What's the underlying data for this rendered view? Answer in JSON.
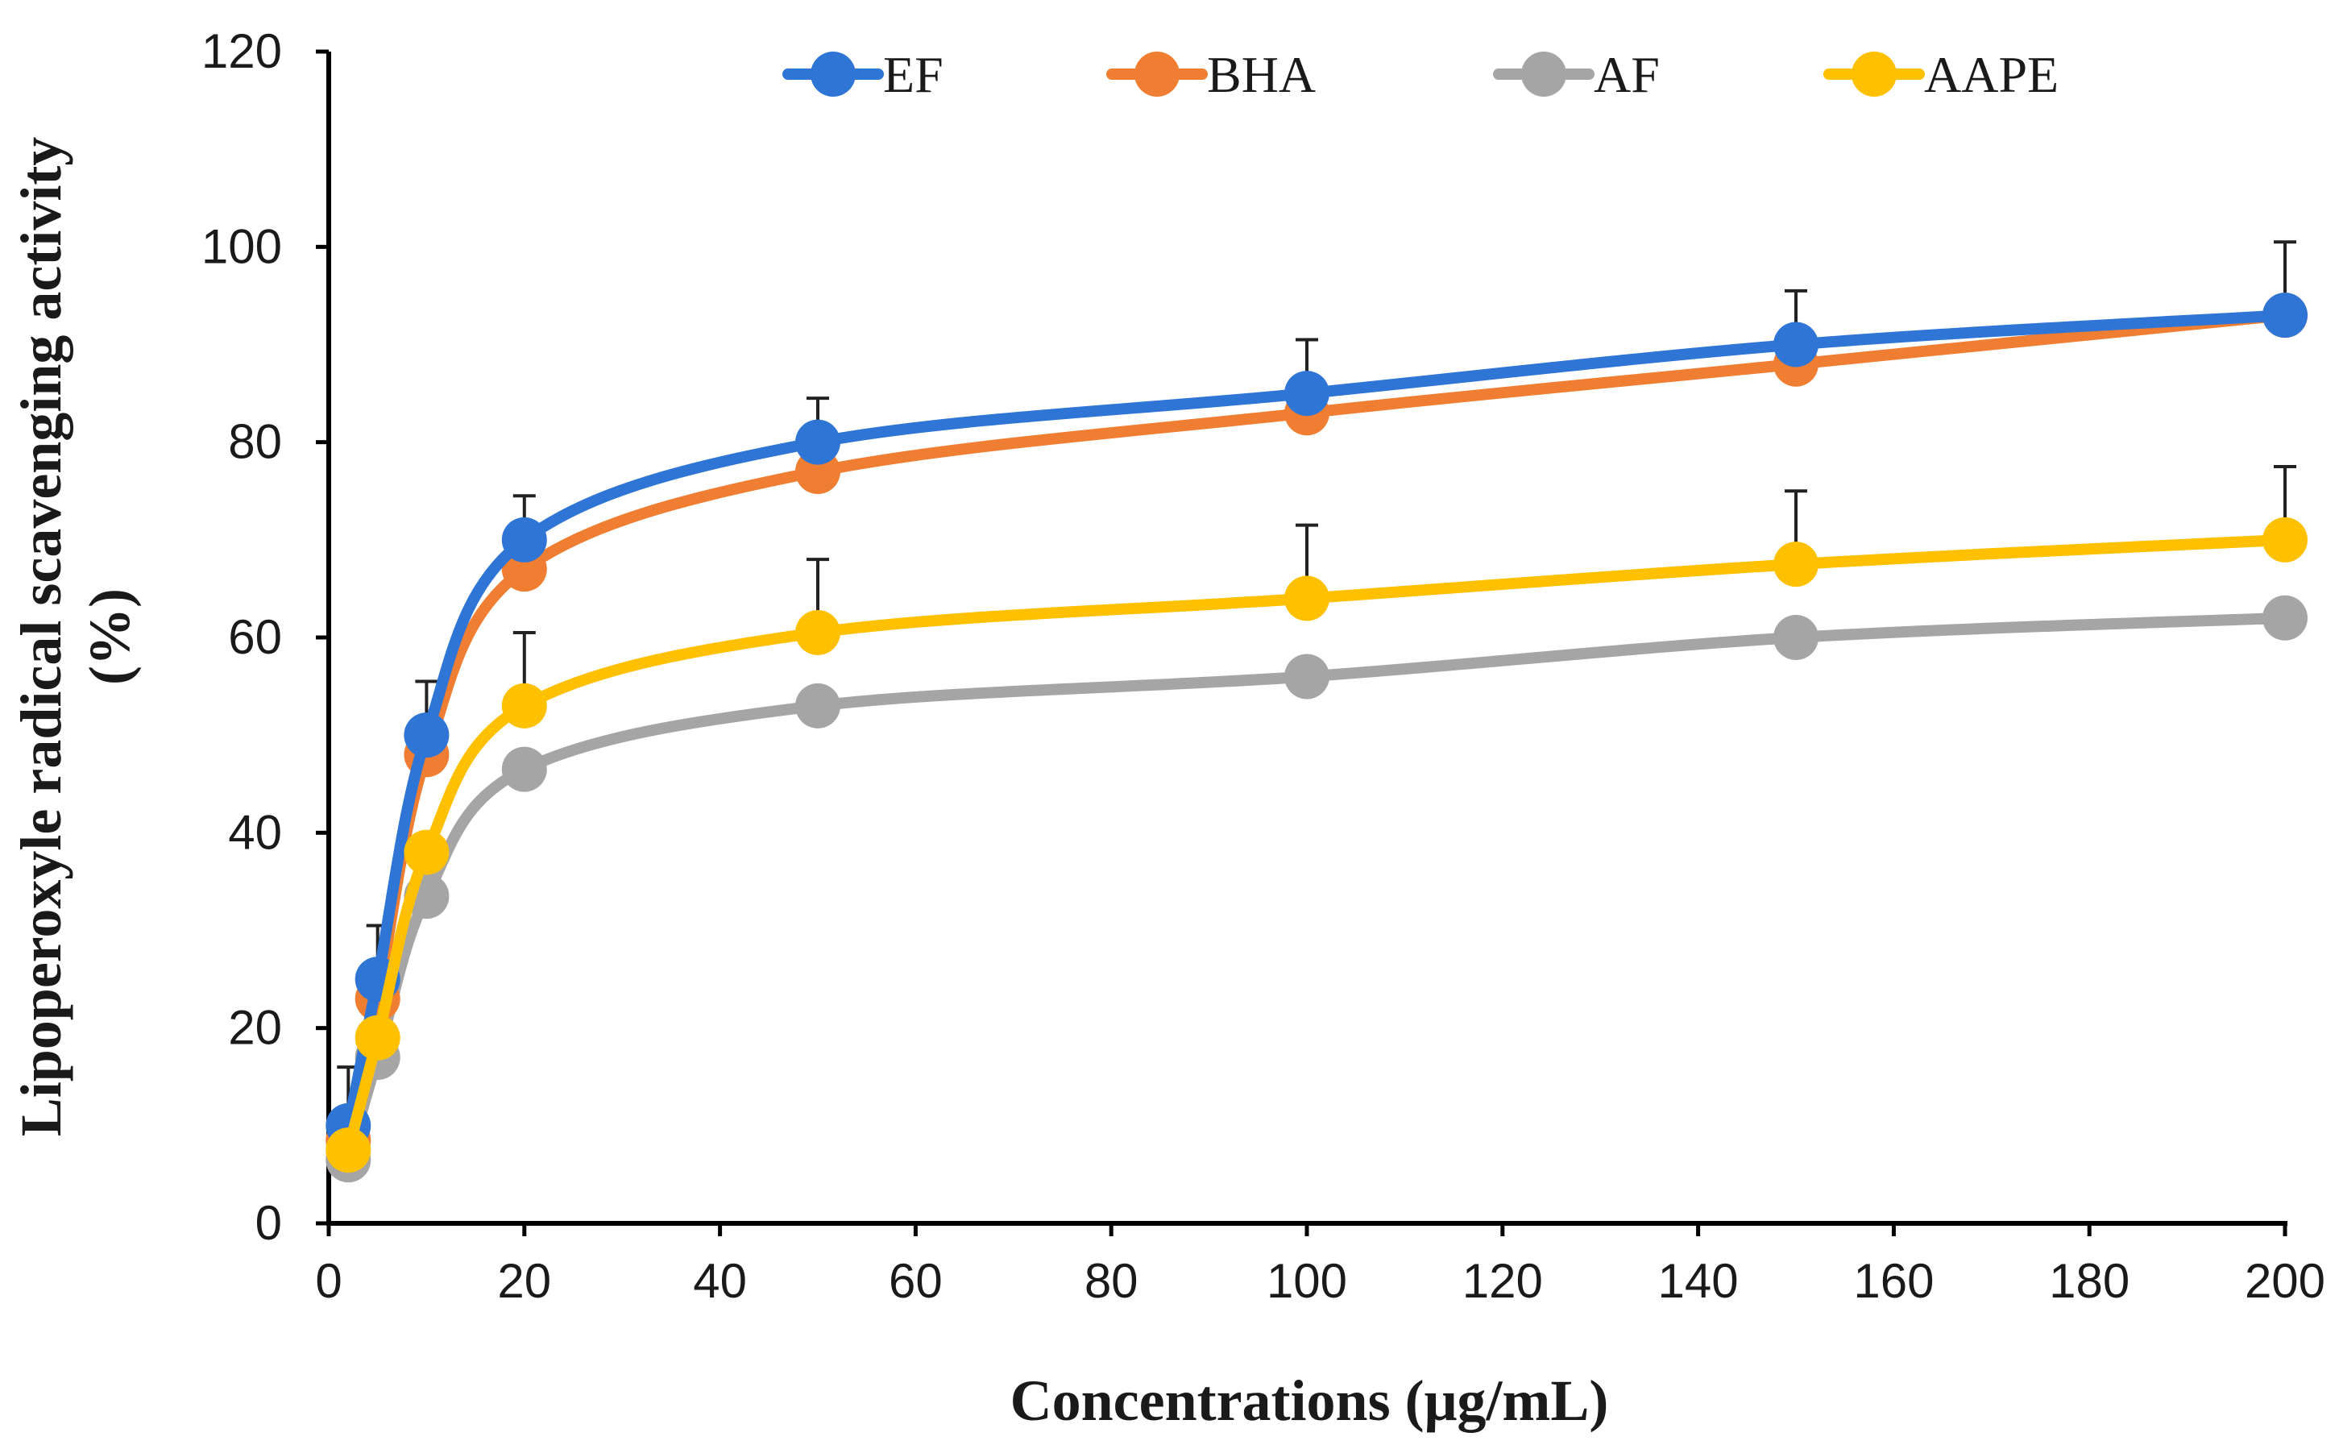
{
  "chart_data": {
    "type": "line",
    "title": "",
    "xlabel": "Concentrations (μg/mL)",
    "ylabel_line1": "Lipoperoxyle  radical  scavenging activity",
    "ylabel_line2": "(%)",
    "xlim": [
      0,
      200
    ],
    "ylim": [
      0,
      120
    ],
    "xticks": [
      0,
      20,
      40,
      60,
      80,
      100,
      120,
      140,
      160,
      180,
      200
    ],
    "yticks": [
      0,
      20,
      40,
      60,
      80,
      100,
      120
    ],
    "grid": false,
    "legend_position": "top",
    "x": [
      2,
      5,
      10,
      20,
      50,
      100,
      150,
      200
    ],
    "series": [
      {
        "name": "EF",
        "color": "#2E75D6",
        "values": [
          10,
          25,
          50,
          70,
          80,
          85,
          90,
          93
        ],
        "errors": [
          6,
          5.5,
          5.5,
          4.5,
          4.5,
          5.5,
          5.5,
          7.5
        ]
      },
      {
        "name": "BHA",
        "color": "#F07E32",
        "values": [
          8.5,
          23,
          48,
          67,
          77,
          83,
          88,
          93
        ],
        "errors": [
          0,
          0,
          0,
          0,
          0,
          0,
          0,
          0
        ]
      },
      {
        "name": "AF",
        "color": "#A5A5A5",
        "values": [
          6.5,
          17,
          33.5,
          46.5,
          53,
          56,
          60,
          62
        ],
        "errors": [
          0,
          0,
          0,
          0,
          0,
          0,
          0,
          0
        ]
      },
      {
        "name": "AAPE",
        "color": "#FFC000",
        "values": [
          7.5,
          19,
          38,
          53,
          60.5,
          64,
          67.5,
          70
        ],
        "errors": [
          0,
          0,
          0,
          7.5,
          7.5,
          7.5,
          7.5,
          7.5
        ]
      }
    ]
  }
}
